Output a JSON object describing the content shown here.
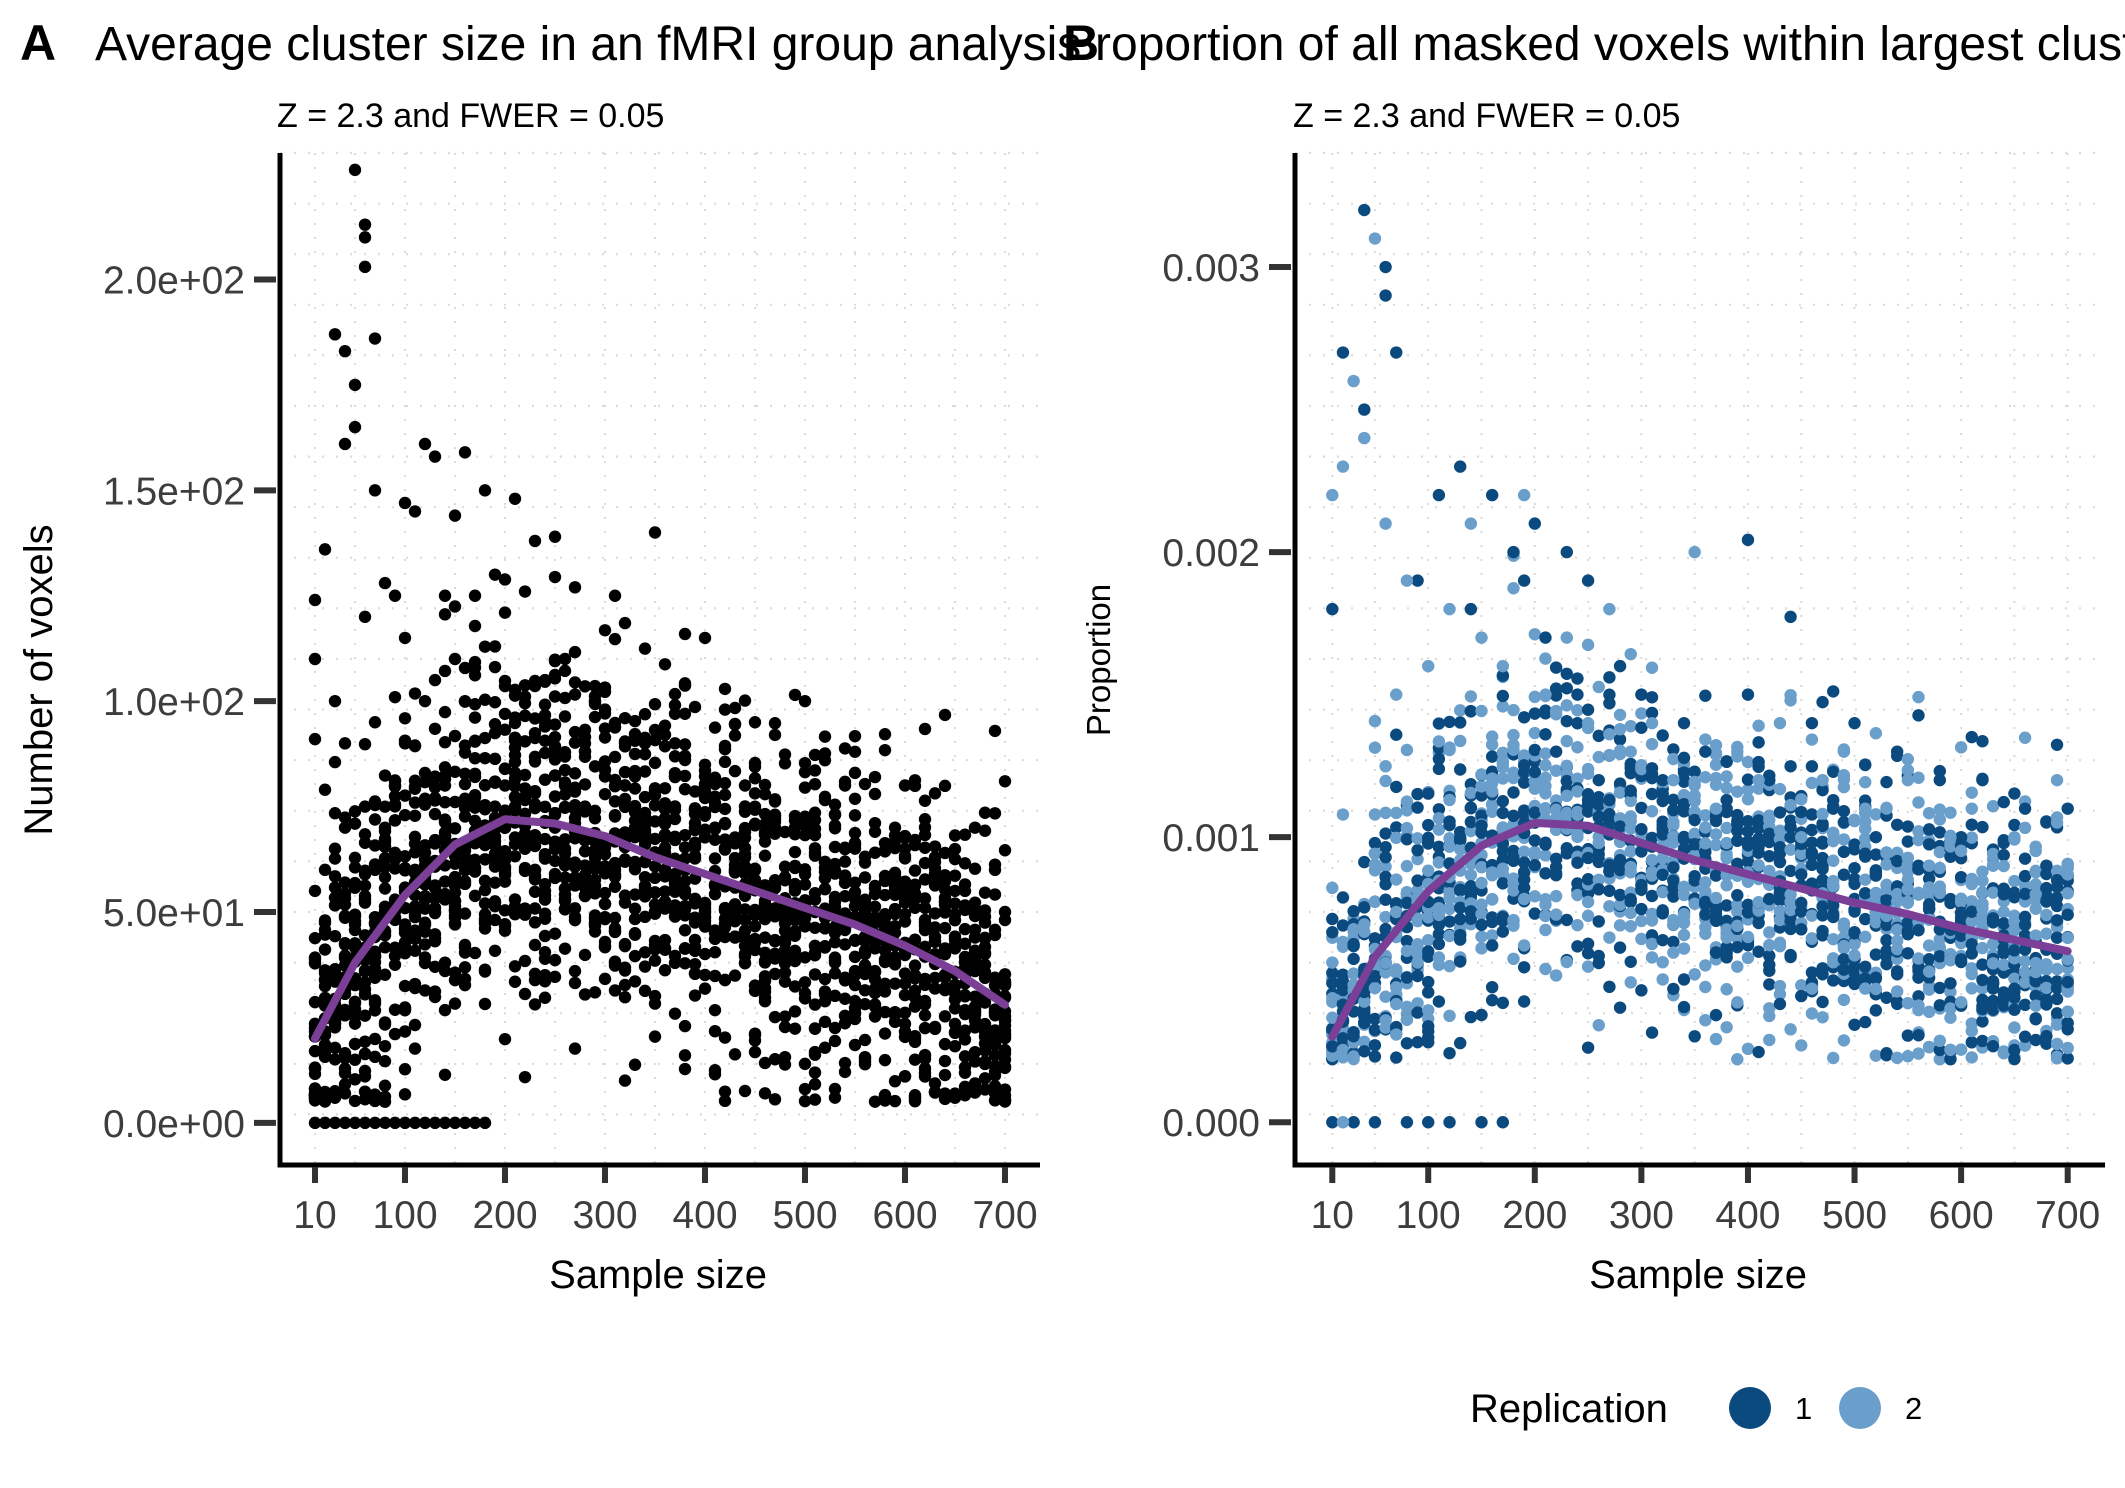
{
  "chart_data": [
    {
      "type": "scatter",
      "panel": "A",
      "title": "Average cluster size in an fMRI group analysis",
      "subtitle": "Z = 2.3 and FWER = 0.05",
      "xlabel": "Sample size",
      "ylabel": "Number of voxels",
      "xlim": [
        -25,
        735
      ],
      "ylim": [
        -10,
        230
      ],
      "x_ticks": [
        10,
        100,
        200,
        300,
        400,
        500,
        600,
        700
      ],
      "x_tick_labels": [
        "10",
        "100",
        "200",
        "300",
        "400",
        "500",
        "600",
        "700"
      ],
      "y_ticks": [
        0,
        50,
        100,
        150,
        200
      ],
      "y_tick_labels": [
        "0.0e+00",
        "5.0e+01",
        "1.0e+02",
        "1.5e+02",
        "2.0e+02"
      ],
      "grid": "dotted",
      "colors": {
        "points": "#000000",
        "smooth": "#7b3f98"
      },
      "series": [
        {
          "kind": "points",
          "x": [
            10,
            10,
            10,
            10,
            10,
            20,
            20,
            20,
            20,
            20,
            30,
            30,
            30,
            30,
            40,
            40,
            40,
            40,
            40,
            50,
            50,
            50,
            50,
            60,
            60,
            60,
            60,
            60,
            60,
            70,
            70,
            70,
            70,
            70,
            80,
            80,
            80,
            90,
            90,
            90,
            100,
            100,
            100,
            100,
            110,
            110,
            110,
            120,
            120,
            120,
            130,
            130,
            130,
            140,
            140,
            140,
            150,
            150,
            150,
            160,
            160,
            160,
            170,
            170,
            180,
            180,
            180,
            190,
            190,
            200,
            200,
            200,
            210,
            210,
            220,
            220,
            230,
            230,
            240,
            240,
            250,
            250,
            260,
            260,
            270,
            280,
            290,
            300,
            300,
            310,
            320,
            330,
            340,
            350,
            360,
            370,
            380,
            390,
            400,
            410,
            420,
            430,
            440,
            450,
            460,
            470,
            480,
            490,
            500,
            510,
            520,
            530,
            540,
            550,
            560,
            570,
            580,
            590,
            600,
            610,
            620,
            630,
            640,
            650,
            660,
            670,
            680,
            690,
            700,
            700,
            700,
            700
          ],
          "y": [
            0,
            124,
            110,
            91,
            55,
            0,
            136,
            79,
            60,
            48,
            0,
            187,
            100,
            65,
            0,
            183,
            161,
            90,
            70,
            0,
            226,
            175,
            165,
            0,
            213,
            210,
            203,
            120,
            75,
            0,
            186,
            150,
            95,
            60,
            0,
            128,
            70,
            0,
            125,
            80,
            0,
            147,
            115,
            90,
            0,
            145,
            60,
            0,
            161,
            100,
            0,
            158,
            105,
            0,
            125,
            80,
            0,
            144,
            110,
            0,
            159,
            100,
            0,
            125,
            0,
            150,
            70,
            130,
            75,
            121,
            80,
            60,
            148,
            75,
            126,
            65,
            138,
            60,
            105,
            55,
            139,
            70,
            110,
            65,
            127,
            90,
            100,
            98,
            60,
            125,
            80,
            70,
            90,
            140,
            60,
            90,
            87,
            70,
            115,
            70,
            98,
            60,
            80,
            95,
            55,
            92,
            50,
            70,
            100,
            50,
            86,
            45,
            80,
            88,
            40,
            82,
            45,
            70,
            80,
            35,
            72,
            40,
            64,
            55,
            30,
            70,
            40,
            60,
            81,
            50,
            30,
            15
          ],
          "note": "representative sample of a dense point cloud"
        },
        {
          "kind": "smooth",
          "x": [
            10,
            50,
            100,
            150,
            200,
            250,
            300,
            350,
            400,
            450,
            500,
            550,
            600,
            650,
            700
          ],
          "y": [
            20,
            38,
            54,
            66,
            72,
            71,
            68,
            63,
            59,
            55,
            51,
            47,
            42,
            36,
            28
          ]
        }
      ]
    },
    {
      "type": "scatter",
      "panel": "B",
      "title": "Proportion of all masked voxels within largest cluster",
      "subtitle": "Z = 2.3 and FWER = 0.05",
      "xlabel": "Sample size",
      "ylabel": "Proportion",
      "xlim": [
        -25,
        735
      ],
      "ylim": [
        -0.00015,
        0.0034
      ],
      "x_ticks": [
        10,
        100,
        200,
        300,
        400,
        500,
        600,
        700
      ],
      "x_tick_labels": [
        "10",
        "100",
        "200",
        "300",
        "400",
        "500",
        "600",
        "700"
      ],
      "y_ticks": [
        0,
        0.001,
        0.002,
        0.003
      ],
      "y_tick_labels": [
        "0.000",
        "0.001",
        "0.002",
        "0.003"
      ],
      "grid": "dotted",
      "legend": {
        "title": "Replication",
        "position": "bottom",
        "items": [
          {
            "label": "1",
            "color": "#0b4a7f"
          },
          {
            "label": "2",
            "color": "#6a9ecb"
          }
        ]
      },
      "colors": {
        "smooth": "#7b3f98"
      },
      "series": [
        {
          "name": "1",
          "kind": "points",
          "x": [
            10,
            10,
            20,
            30,
            40,
            40,
            50,
            60,
            60,
            70,
            80,
            90,
            100,
            110,
            120,
            130,
            140,
            150,
            160,
            170,
            180,
            190,
            200,
            210,
            220,
            230,
            240,
            250,
            260,
            280,
            300,
            320,
            340,
            360,
            380,
            400,
            420,
            440,
            460,
            480,
            500,
            520,
            540,
            560,
            580,
            600,
            620,
            640,
            660,
            680,
            700
          ],
          "y": [
            0,
            0.0018,
            0.0027,
            0,
            0.0032,
            0.0025,
            0,
            0.003,
            0.0029,
            0.0027,
            0,
            0.0019,
            0,
            0.0022,
            0,
            0.0023,
            0.0018,
            0,
            0.0022,
            0,
            0.002,
            0.0019,
            0.0021,
            0.0017,
            0.0013,
            0.002,
            0.0015,
            0.0019,
            0.0012,
            0.0016,
            0.0015,
            0.0012,
            0.0014,
            0.0013,
            0.0011,
            0.0015,
            0.0012,
            0.001,
            0.0014,
            0.0011,
            0.0014,
            0.001,
            0.0013,
            0.0009,
            0.0012,
            0.001,
            0.0012,
            0.0008,
            0.0011,
            0.0009,
            0.0011
          ],
          "note": "representative sample of a dense point cloud"
        },
        {
          "name": "2",
          "kind": "points",
          "x": [
            10,
            20,
            20,
            30,
            40,
            50,
            60,
            70,
            80,
            100,
            120,
            140,
            150,
            170,
            190,
            210,
            230,
            250,
            270,
            290,
            310,
            330,
            350,
            370,
            390,
            410,
            430,
            450,
            470,
            490,
            510,
            530,
            550,
            570,
            590,
            610,
            630,
            650,
            670,
            690,
            700
          ],
          "y": [
            0.0022,
            0,
            0.0023,
            0.0026,
            0.0024,
            0.0031,
            0.0021,
            0.0015,
            0.0019,
            0.0016,
            0.0018,
            0.0021,
            0.0017,
            0.0016,
            0.0022,
            0.0015,
            0.0017,
            0.0014,
            0.0018,
            0.0013,
            0.0014,
            0.0012,
            0.002,
            0.0011,
            0.0013,
            0.0012,
            0.0014,
            0.001,
            0.0012,
            0.0013,
            0.0011,
            0.0011,
            0.0012,
            0.0009,
            0.001,
            0.0011,
            0.0009,
            0.001,
            0.0008,
            0.0012,
            0.0009
          ],
          "note": "representative sample of a dense point cloud"
        },
        {
          "kind": "smooth",
          "x": [
            10,
            50,
            100,
            150,
            200,
            250,
            300,
            350,
            400,
            450,
            500,
            550,
            600,
            650,
            700
          ],
          "y": [
            0.0003,
            0.00058,
            0.00081,
            0.00097,
            0.00105,
            0.00104,
            0.00098,
            0.00092,
            0.00087,
            0.00082,
            0.00077,
            0.00073,
            0.00068,
            0.00064,
            0.0006
          ]
        }
      ]
    }
  ]
}
